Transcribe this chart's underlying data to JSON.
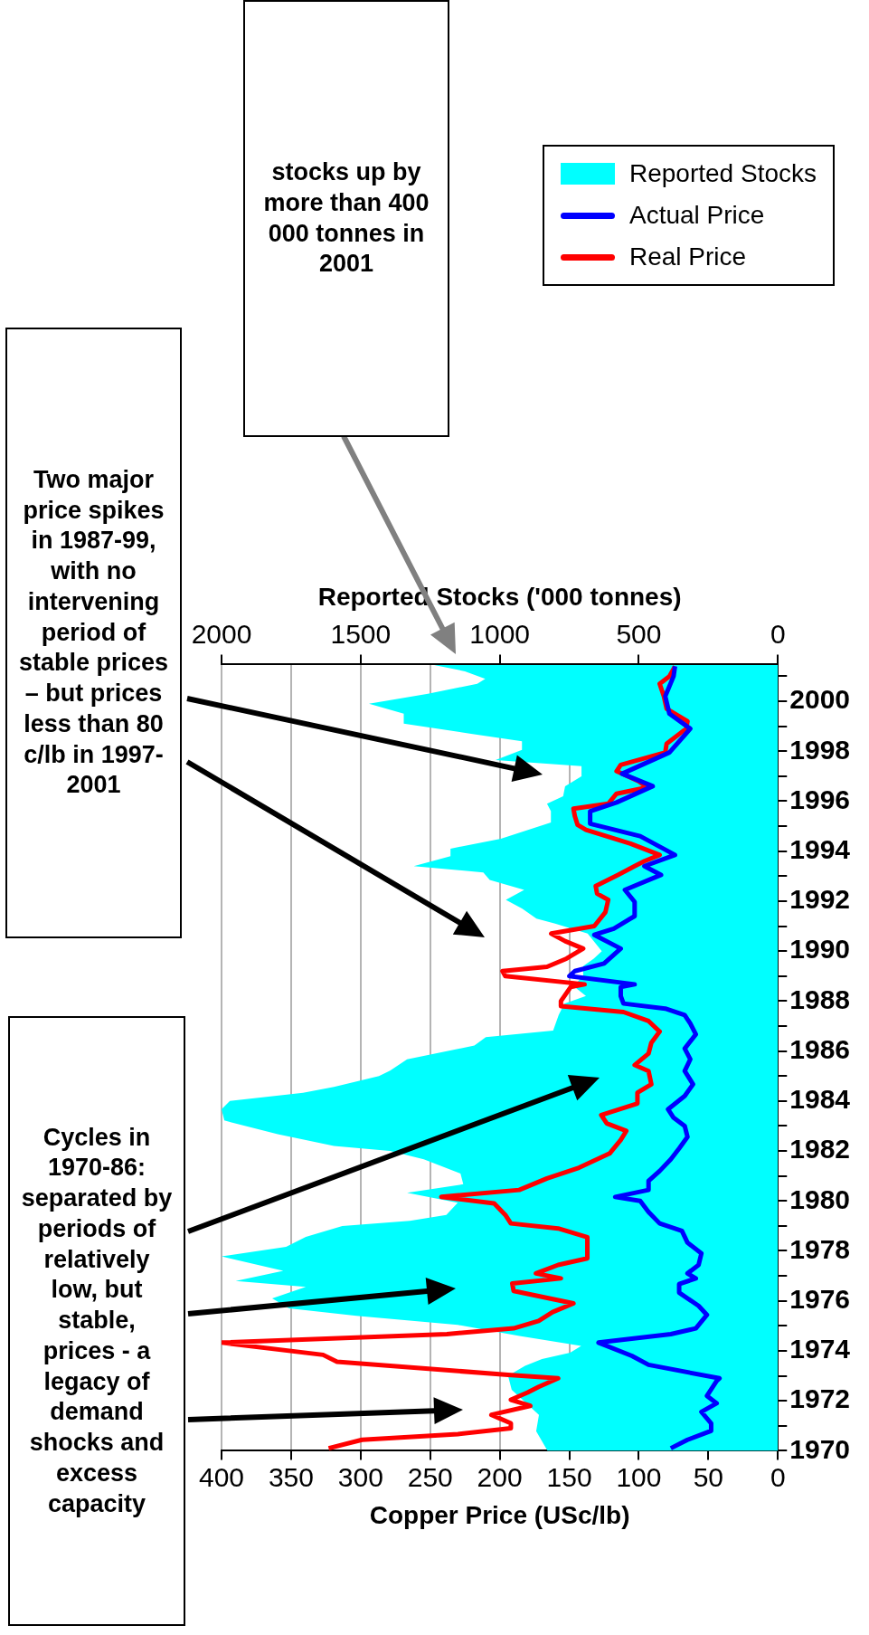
{
  "chart_data": {
    "type": "line",
    "orientation": "horizontal",
    "xlabel": "Copper Price (USc/lb)",
    "x2label": "Reported Stocks ('000 tonnes)",
    "annotations": [
      "Cycles in 1970-86: separated by periods of relatively low, but stable, prices - a legacy of demand shocks and excess capacity",
      "Two major price spikes in 1987-99, with no intervening period of stable prices – but prices less than 80 c/lb in 1997-2001",
      "stocks up by more than 400 000 tonnes in 2001"
    ],
    "ylim": [
      1970,
      2001.5
    ],
    "yticks": [
      1970,
      {
        "value": 1971,
        "label": null
      },
      1972,
      {
        "value": 1973,
        "label": null
      },
      1974,
      {
        "value": 1975,
        "label": null
      },
      1976,
      {
        "value": 1977,
        "label": null
      },
      1978,
      {
        "value": 1979,
        "label": null
      },
      1980,
      {
        "value": 1981,
        "label": null
      },
      1982,
      {
        "value": 1983,
        "label": null
      },
      1984,
      {
        "value": 1985,
        "label": null
      },
      1986,
      {
        "value": 1987,
        "label": null
      },
      1988,
      {
        "value": 1989,
        "label": null
      },
      1990,
      {
        "value": 1991,
        "label": null
      },
      1992,
      {
        "value": 1993,
        "label": null
      },
      1994,
      {
        "value": 1995,
        "label": null
      },
      1996,
      {
        "value": 1997,
        "label": null
      },
      1998,
      {
        "value": 1999,
        "label": null
      },
      2000,
      {
        "value": 2001,
        "label": null
      }
    ],
    "xlim": [
      400,
      0
    ],
    "xticks": [
      0,
      50,
      100,
      150,
      200,
      250,
      300,
      350,
      400
    ],
    "x2lim": [
      2000,
      0
    ],
    "x2ticks": [
      0,
      500,
      1000,
      1500,
      2000
    ],
    "grid": "x",
    "legend": "top right",
    "series": [
      {
        "name": "Reported Stocks",
        "type": "area",
        "axis": "x2",
        "color": "#00ffff",
        "x": [
          1970.0,
          1970.78,
          1971.44,
          1972.44,
          1973.0,
          1973.4,
          1973.67,
          1973.93,
          1974.2,
          1974.6,
          1975.04,
          1975.4,
          1975.7,
          1976.1,
          1976.56,
          1976.8,
          1977.2,
          1977.78,
          1978.16,
          1978.56,
          1979.0,
          1979.2,
          1979.44,
          1979.93,
          1980.33,
          1980.67,
          1981.1,
          1981.67,
          1982.0,
          1982.2,
          1982.67,
          1983.22,
          1983.67,
          1984.0,
          1984.33,
          1984.56,
          1985.0,
          1985.22,
          1985.67,
          1986.22,
          1986.56,
          1986.82,
          1987.44,
          1987.9,
          1988.2,
          1988.6,
          1989.0,
          1989.4,
          1989.7,
          1990.0,
          1990.7,
          1991.1,
          1991.3,
          1991.7,
          1992.05,
          1992.45,
          1992.85,
          1993.15,
          1993.4,
          1993.8,
          1994.1,
          1994.5,
          1995.15,
          1995.6,
          1995.9,
          1996.2,
          1996.6,
          1997.0,
          1997.4,
          1997.65,
          1998.05,
          1998.4,
          1998.7,
          1999.1,
          1999.5,
          1999.9,
          2000.3,
          2000.7,
          2000.9,
          2001.2,
          2001.45
        ],
        "values": [
          828,
          869,
          859,
          957,
          970,
          909,
          848,
          747,
          707,
          929,
          1151,
          1515,
          1757,
          1818,
          1697,
          1949,
          1778,
          2000,
          1768,
          1697,
          1566,
          1323,
          1192,
          1151,
          1333,
          1131,
          1141,
          1273,
          1394,
          1596,
          1798,
          1990,
          2000,
          1970,
          1707,
          1596,
          1434,
          1394,
          1333,
          1091,
          1050,
          808,
          788,
          768,
          690,
          735,
          700,
          700,
          662,
          633,
          684,
          801,
          868,
          919,
          978,
          912,
          1036,
          1059,
          1309,
          1177,
          1177,
          996,
          816,
          816,
          830,
          772,
          765,
          705,
          706,
          1015,
          920,
          920,
          1103,
          1345,
          1345,
          1470,
          1258,
          1081,
          1052,
          1125,
          1236
        ]
      },
      {
        "name": "Actual Price",
        "color": "#0000ff",
        "x": [
          1970.1,
          1970.44,
          1970.8,
          1971.1,
          1971.56,
          1971.9,
          1972.2,
          1972.8,
          1972.9,
          1973.44,
          1973.8,
          1974.33,
          1974.67,
          1974.9,
          1975.44,
          1975.8,
          1976.33,
          1976.67,
          1976.9,
          1977.1,
          1977.44,
          1977.9,
          1978.33,
          1978.8,
          1979.1,
          1979.56,
          1980.0,
          1980.16,
          1980.44,
          1980.8,
          1981.2,
          1981.67,
          1982.1,
          1982.56,
          1983.0,
          1983.33,
          1983.67,
          1984.2,
          1984.67,
          1985.2,
          1985.67,
          1986.1,
          1986.67,
          1987.1,
          1987.44,
          1987.7,
          1987.9,
          1988.2,
          1988.56,
          1988.67,
          1989.0,
          1989.2,
          1989.5,
          1990.1,
          1990.65,
          1990.9,
          1991.4,
          1991.97,
          1992.45,
          1993.05,
          1993.4,
          1993.85,
          1994.6,
          1995.1,
          1995.6,
          1995.95,
          1996.6,
          1997.1,
          1997.95,
          1998.9,
          1999.5,
          2000.2,
          2001.0,
          2001.4
        ],
        "values": [
          77,
          65,
          48,
          48,
          55,
          44,
          51,
          44,
          42,
          93,
          105,
          129,
          77,
          59,
          51,
          57,
          71,
          71,
          59,
          65,
          57,
          55,
          65,
          69,
          85,
          93,
          99,
          117,
          93,
          93,
          85,
          77,
          71,
          65,
          67,
          75,
          79,
          67,
          61,
          67,
          63,
          67,
          59,
          63,
          67,
          81,
          111,
          113,
          113,
          103,
          150,
          146,
          125,
          113,
          132,
          118,
          103,
          103,
          110,
          84,
          96,
          74,
          99,
          135,
          135,
          116,
          90,
          112,
          78,
          63,
          78,
          81,
          75,
          74
        ]
      },
      {
        "name": "Real Price",
        "color": "#ff0000",
        "x": [
          1970.1,
          1970.44,
          1970.67,
          1970.9,
          1971.1,
          1971.44,
          1971.8,
          1972.04,
          1972.33,
          1972.56,
          1972.9,
          1973.04,
          1973.56,
          1973.84,
          1974.33,
          1974.67,
          1974.9,
          1975.2,
          1975.55,
          1975.9,
          1976.4,
          1976.7,
          1976.9,
          1977.1,
          1977.44,
          1977.7,
          1978.55,
          1978.9,
          1979.1,
          1979.44,
          1979.9,
          1980.16,
          1980.44,
          1980.9,
          1981.33,
          1981.9,
          1982.44,
          1982.8,
          1983.1,
          1983.44,
          1983.9,
          1984.33,
          1984.67,
          1985.2,
          1985.44,
          1985.9,
          1986.33,
          1986.78,
          1987.2,
          1987.56,
          1987.8,
          1988.0,
          1988.56,
          1988.67,
          1989.0,
          1989.2,
          1989.37,
          1989.7,
          1990.1,
          1990.4,
          1990.7,
          1991.0,
          1991.56,
          1992.05,
          1992.3,
          1992.6,
          1993.05,
          1993.4,
          1993.6,
          1993.85,
          1994.3,
          1994.85,
          1995.05,
          1995.4,
          1995.7,
          1995.9,
          1996.3,
          1996.55,
          1996.8,
          1997.2,
          1997.45,
          1997.95,
          1998.3,
          1998.9,
          1999.2,
          1999.7,
          2000.2,
          2000.7,
          2001.0,
          2001.4
        ],
        "values": [
          323,
          299,
          230,
          192,
          192,
          206,
          178,
          192,
          180,
          172,
          158,
          194,
          317,
          327,
          400,
          238,
          190,
          172,
          162,
          147,
          190,
          191,
          156,
          174,
          158,
          137,
          137,
          158,
          192,
          196,
          204,
          242,
          186,
          166,
          143,
          121,
          113,
          109,
          123,
          127,
          101,
          101,
          91,
          93,
          103,
          93,
          91,
          85,
          93,
          111,
          156,
          156,
          149,
          139,
          196,
          198,
          166,
          152,
          140,
          153,
          163,
          132,
          124,
          122,
          130,
          131,
          115,
          103,
          96,
          85,
          106,
          138,
          144,
          146,
          147,
          122,
          116,
          94,
          100,
          116,
          113,
          81,
          80,
          66,
          65,
          80,
          82,
          85,
          78,
          74
        ]
      }
    ]
  }
}
